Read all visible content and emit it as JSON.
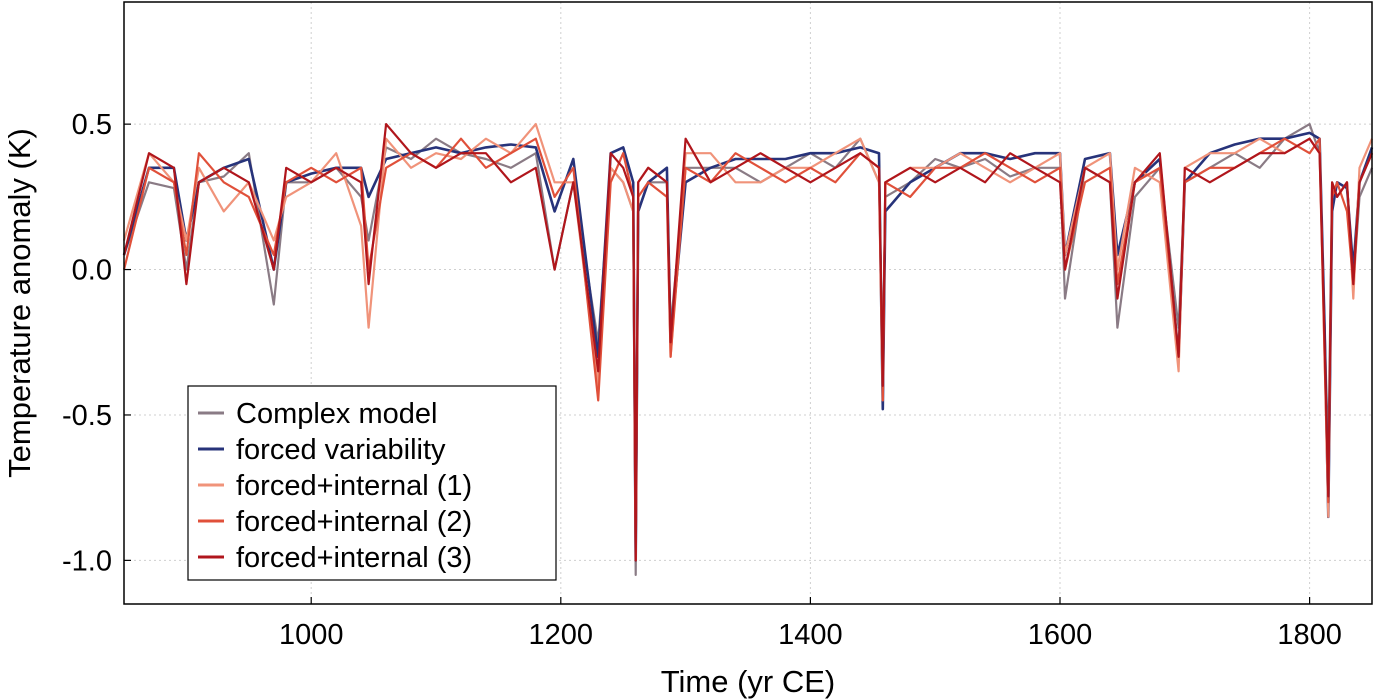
{
  "chart_data": {
    "type": "line",
    "title": "",
    "xlabel": "Time (yr CE)",
    "ylabel": "Temperature anomaly (K)",
    "xlim": [
      850,
      1850
    ],
    "ylim": [
      -1.15,
      0.92
    ],
    "xticks": [
      1000,
      1200,
      1400,
      1600,
      1800
    ],
    "yticks": [
      -1.0,
      -0.5,
      0.0,
      0.5
    ],
    "ytick_labels": [
      "-1.0",
      "-0.5",
      "0.0",
      "0.5"
    ],
    "grid": true,
    "legend_position": "bottom-left",
    "x": [
      850,
      870,
      890,
      900,
      910,
      930,
      950,
      970,
      980,
      1000,
      1020,
      1040,
      1046,
      1060,
      1080,
      1100,
      1120,
      1140,
      1160,
      1180,
      1195,
      1210,
      1230,
      1240,
      1250,
      1258,
      1260,
      1262,
      1270,
      1285,
      1288,
      1300,
      1320,
      1340,
      1360,
      1380,
      1400,
      1420,
      1440,
      1455,
      1458,
      1460,
      1480,
      1500,
      1520,
      1540,
      1560,
      1580,
      1600,
      1604,
      1620,
      1640,
      1646,
      1660,
      1680,
      1695,
      1700,
      1720,
      1740,
      1760,
      1780,
      1800,
      1808,
      1812,
      1815,
      1818,
      1822,
      1830,
      1835,
      1840,
      1850
    ],
    "series": [
      {
        "name": "Complex model",
        "color": "#8a7b85",
        "values": [
          0.05,
          0.3,
          0.28,
          0.0,
          0.3,
          0.32,
          0.4,
          -0.12,
          0.3,
          0.3,
          0.35,
          0.25,
          0.1,
          0.42,
          0.38,
          0.45,
          0.4,
          0.38,
          0.35,
          0.4,
          0.0,
          0.3,
          -0.25,
          0.35,
          0.3,
          0.2,
          -1.05,
          0.2,
          0.3,
          0.3,
          -0.2,
          0.35,
          0.35,
          0.35,
          0.3,
          0.35,
          0.4,
          0.35,
          0.45,
          0.3,
          -0.35,
          0.25,
          0.3,
          0.38,
          0.35,
          0.38,
          0.32,
          0.35,
          0.35,
          -0.1,
          0.35,
          0.3,
          -0.2,
          0.25,
          0.35,
          -0.2,
          0.3,
          0.35,
          0.4,
          0.35,
          0.45,
          0.5,
          0.4,
          -0.2,
          -0.65,
          0.3,
          0.25,
          0.3,
          -0.05,
          0.25,
          0.35
        ]
      },
      {
        "name": "forced variability",
        "color": "#27337a",
        "values": [
          0.05,
          0.35,
          0.35,
          0.1,
          0.3,
          0.35,
          0.38,
          0.0,
          0.3,
          0.33,
          0.35,
          0.35,
          0.25,
          0.38,
          0.4,
          0.42,
          0.4,
          0.42,
          0.43,
          0.42,
          0.2,
          0.38,
          -0.3,
          0.4,
          0.42,
          0.3,
          -1.0,
          0.2,
          0.3,
          0.35,
          -0.25,
          0.3,
          0.35,
          0.38,
          0.38,
          0.38,
          0.4,
          0.4,
          0.42,
          0.4,
          -0.48,
          0.2,
          0.3,
          0.35,
          0.4,
          0.4,
          0.38,
          0.4,
          0.4,
          0.05,
          0.38,
          0.4,
          0.05,
          0.3,
          0.38,
          -0.3,
          0.3,
          0.4,
          0.43,
          0.45,
          0.45,
          0.47,
          0.45,
          -0.2,
          -0.85,
          0.2,
          0.3,
          0.28,
          0.0,
          0.3,
          0.42
        ]
      },
      {
        "name": "forced+internal (1)",
        "color": "#f0937a",
        "values": [
          0.1,
          0.4,
          0.3,
          0.1,
          0.35,
          0.2,
          0.3,
          0.1,
          0.25,
          0.3,
          0.4,
          0.15,
          -0.2,
          0.45,
          0.35,
          0.4,
          0.38,
          0.45,
          0.4,
          0.5,
          0.3,
          0.3,
          -0.4,
          0.35,
          0.3,
          0.2,
          -1.0,
          0.3,
          0.35,
          0.3,
          -0.3,
          0.4,
          0.4,
          0.3,
          0.3,
          0.35,
          0.35,
          0.4,
          0.45,
          0.3,
          -0.45,
          0.3,
          0.35,
          0.35,
          0.4,
          0.35,
          0.3,
          0.35,
          0.4,
          0.05,
          0.35,
          0.4,
          0.0,
          0.35,
          0.3,
          -0.35,
          0.35,
          0.4,
          0.4,
          0.45,
          0.4,
          0.45,
          0.4,
          -0.3,
          -0.85,
          0.3,
          0.25,
          0.3,
          -0.1,
          0.35,
          0.45
        ]
      },
      {
        "name": "forced+internal (2)",
        "color": "#e0503a",
        "values": [
          0.0,
          0.35,
          0.3,
          0.05,
          0.4,
          0.3,
          0.25,
          0.05,
          0.3,
          0.35,
          0.3,
          0.35,
          0.0,
          0.35,
          0.4,
          0.35,
          0.45,
          0.35,
          0.4,
          0.45,
          0.25,
          0.35,
          -0.45,
          0.3,
          0.4,
          0.25,
          -1.0,
          0.25,
          0.3,
          0.25,
          -0.3,
          0.35,
          0.3,
          0.4,
          0.35,
          0.3,
          0.35,
          0.3,
          0.4,
          0.35,
          -0.45,
          0.3,
          0.25,
          0.35,
          0.35,
          0.4,
          0.35,
          0.3,
          0.35,
          0.0,
          0.3,
          0.35,
          -0.05,
          0.3,
          0.35,
          -0.3,
          0.3,
          0.35,
          0.35,
          0.4,
          0.45,
          0.4,
          0.45,
          -0.3,
          -0.8,
          0.25,
          0.3,
          0.2,
          -0.05,
          0.3,
          0.4
        ]
      },
      {
        "name": "forced+internal (3)",
        "color": "#b0161c",
        "values": [
          0.05,
          0.4,
          0.35,
          -0.05,
          0.3,
          0.35,
          0.3,
          0.0,
          0.35,
          0.3,
          0.35,
          0.3,
          -0.05,
          0.5,
          0.4,
          0.35,
          0.4,
          0.4,
          0.3,
          0.35,
          0.0,
          0.3,
          -0.35,
          0.4,
          0.35,
          0.25,
          -1.0,
          0.3,
          0.35,
          0.3,
          -0.25,
          0.45,
          0.3,
          0.35,
          0.4,
          0.35,
          0.3,
          0.35,
          0.4,
          0.35,
          -0.4,
          0.3,
          0.35,
          0.3,
          0.35,
          0.3,
          0.4,
          0.35,
          0.3,
          0.0,
          0.35,
          0.3,
          -0.1,
          0.3,
          0.4,
          -0.3,
          0.35,
          0.3,
          0.35,
          0.4,
          0.4,
          0.45,
          0.4,
          -0.25,
          -0.78,
          0.3,
          0.25,
          0.3,
          -0.05,
          0.3,
          0.4
        ]
      }
    ]
  }
}
